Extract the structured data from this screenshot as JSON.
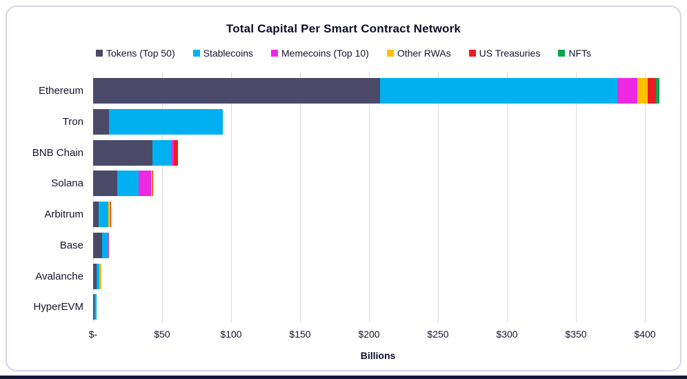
{
  "chart_data": {
    "type": "bar",
    "orientation": "horizontal",
    "stacked": true,
    "title": "Total Capital Per Smart Contract Network",
    "xlabel": "Billions",
    "categories": [
      "Ethereum",
      "Tron",
      "BNB Chain",
      "Solana",
      "Arbitrum",
      "Base",
      "Avalanche",
      "HyperEVM"
    ],
    "series": [
      {
        "name": "Tokens (Top 50)",
        "color": "#4a4a68",
        "values": [
          208,
          11.5,
          43,
          17.5,
          4,
          6.5,
          2.5,
          1
        ]
      },
      {
        "name": "Stablecoins",
        "color": "#00b0f0",
        "values": [
          172,
          82.5,
          14,
          15.5,
          7,
          4.5,
          2,
          1.5
        ]
      },
      {
        "name": "Memecoins (Top 10)",
        "color": "#ee28e0",
        "values": [
          14.5,
          0,
          1.5,
          9,
          0,
          0.7,
          0,
          0
        ]
      },
      {
        "name": "Other RWAs",
        "color": "#ffc000",
        "values": [
          7.5,
          0,
          0,
          1,
          1.5,
          0,
          1.5,
          0
        ]
      },
      {
        "name": "US Treasuries",
        "color": "#ed1c24",
        "values": [
          6,
          0,
          3,
          0.5,
          0.5,
          0,
          0,
          0
        ]
      },
      {
        "name": "NFTs",
        "color": "#0aa350",
        "values": [
          2.5,
          0,
          0,
          0,
          0,
          0,
          0,
          0
        ]
      }
    ],
    "x_ticks": [
      "$-",
      "$50",
      "$100",
      "$150",
      "$200",
      "$250",
      "$300",
      "$350",
      "$400"
    ],
    "x_tick_values": [
      0,
      50,
      100,
      150,
      200,
      250,
      300,
      350,
      400
    ],
    "xlim": [
      0,
      412
    ],
    "grid": true,
    "legend_position": "top"
  },
  "colors": {
    "text": "#14142e",
    "title": "#0d0d2b",
    "gridline": "#d9d9d9",
    "card_border": "#d9d3e9",
    "bottom_strip": "#17173a"
  }
}
